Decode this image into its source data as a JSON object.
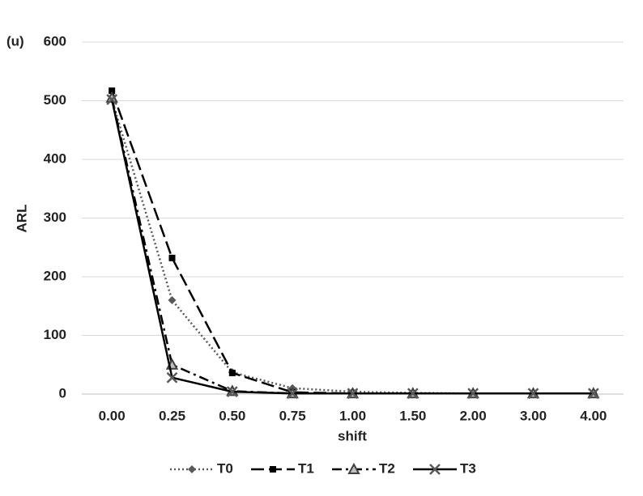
{
  "chart_data": {
    "type": "line",
    "annotation": "(u)",
    "xlabel": "shift",
    "ylabel": "ARL",
    "categories": [
      "0.00",
      "0.25",
      "0.50",
      "0.75",
      "1.00",
      "1.50",
      "2.00",
      "3.00",
      "4.00"
    ],
    "series": [
      {
        "name": "T0",
        "color": "#595959",
        "dash": "dotted",
        "marker": "diamond",
        "values": [
          502,
          160,
          37,
          10,
          4,
          2,
          1,
          1,
          1
        ]
      },
      {
        "name": "T1",
        "color": "#000000",
        "dash": "long-dash",
        "marker": "square",
        "values": [
          517,
          232,
          36,
          3,
          1,
          1,
          1,
          1,
          1
        ]
      },
      {
        "name": "T2",
        "color": "#000000",
        "dash": "dash-dot",
        "marker": "triangle",
        "values": [
          505,
          50,
          5,
          1,
          1,
          1,
          1,
          1,
          1
        ]
      },
      {
        "name": "T3",
        "color": "#000000",
        "dash": "solid",
        "marker": "x",
        "values": [
          502,
          28,
          4,
          1,
          1,
          1,
          1,
          1,
          1
        ]
      }
    ],
    "ylim": [
      0,
      600
    ],
    "yticks": [
      0,
      100,
      200,
      300,
      400,
      500,
      600
    ],
    "grid": true,
    "legend": "bottom"
  }
}
